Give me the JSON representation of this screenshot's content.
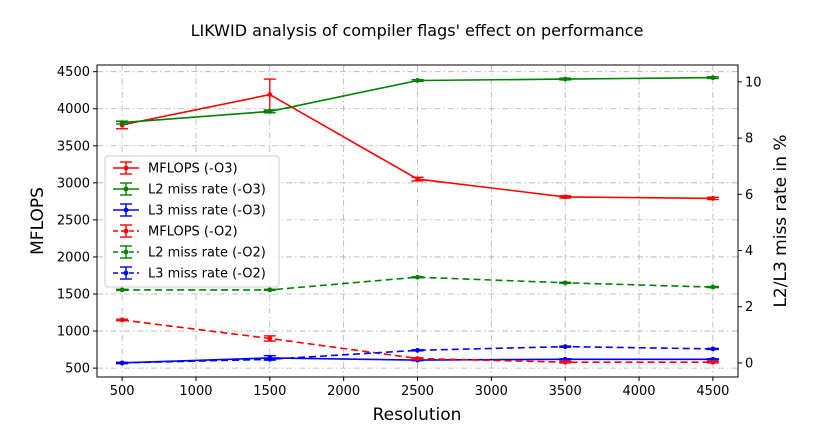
{
  "chart_data": {
    "type": "line",
    "title": "LIKWID analysis of compiler flags' effect on performance",
    "xlabel": "Resolution",
    "ylabel_left": "MFLOPS",
    "ylabel_right": "L2/L3 miss rate in %",
    "xlim": [
      330,
      4670
    ],
    "ylim_left": [
      380,
      4590
    ],
    "ylim_right": [
      -0.5,
      10.6
    ],
    "x_ticks": [
      500,
      1000,
      1500,
      2000,
      2500,
      3000,
      3500,
      4000,
      4500
    ],
    "y_left_ticks": [
      500,
      1000,
      1500,
      2000,
      2500,
      3000,
      3500,
      4000,
      4500
    ],
    "y_right_ticks": [
      0,
      2,
      4,
      6,
      8,
      10
    ],
    "grid": true,
    "legend_position": "center-left",
    "series": [
      {
        "name": "MFLOPS (-O3)",
        "axis": "left",
        "color": "#ff0000",
        "dash": "solid",
        "x": [
          500,
          1500,
          2500,
          3500,
          4500
        ],
        "values": [
          3780,
          4190,
          3050,
          2810,
          2790
        ],
        "err": [
          50,
          210,
          25,
          15,
          15
        ]
      },
      {
        "name": "L2 miss rate (-O3)",
        "axis": "right",
        "color": "#008000",
        "dash": "solid",
        "x": [
          500,
          1500,
          2500,
          3500,
          4500
        ],
        "values": [
          8.55,
          8.95,
          10.05,
          10.1,
          10.15
        ],
        "err": [
          0.05,
          0.05,
          0.03,
          0.03,
          0.03
        ]
      },
      {
        "name": "L3 miss rate (-O3)",
        "axis": "right",
        "color": "#0000ff",
        "dash": "solid",
        "x": [
          500,
          1500,
          2500,
          3500,
          4500
        ],
        "values": [
          0.0,
          0.18,
          0.1,
          0.13,
          0.13
        ],
        "err": [
          0.02,
          0.08,
          0.02,
          0.02,
          0.02
        ]
      },
      {
        "name": "MFLOPS (-O2)",
        "axis": "left",
        "color": "#ff0000",
        "dash": "dashed",
        "x": [
          500,
          1500,
          2500,
          3500,
          4500
        ],
        "values": [
          1150,
          900,
          630,
          580,
          580
        ],
        "err": [
          10,
          35,
          10,
          10,
          10
        ]
      },
      {
        "name": "L2 miss rate (-O2)",
        "axis": "right",
        "color": "#008000",
        "dash": "dashed",
        "x": [
          500,
          1500,
          2500,
          3500,
          4500
        ],
        "values": [
          2.6,
          2.6,
          3.05,
          2.85,
          2.7
        ],
        "err": [
          0.02,
          0.02,
          0.02,
          0.02,
          0.02
        ]
      },
      {
        "name": "L3 miss rate (-O2)",
        "axis": "right",
        "color": "#0000ff",
        "dash": "dashed",
        "x": [
          500,
          1500,
          2500,
          3500,
          4500
        ],
        "values": [
          0.0,
          0.13,
          0.45,
          0.58,
          0.5
        ],
        "err": [
          0.02,
          0.02,
          0.02,
          0.02,
          0.02
        ]
      }
    ]
  }
}
